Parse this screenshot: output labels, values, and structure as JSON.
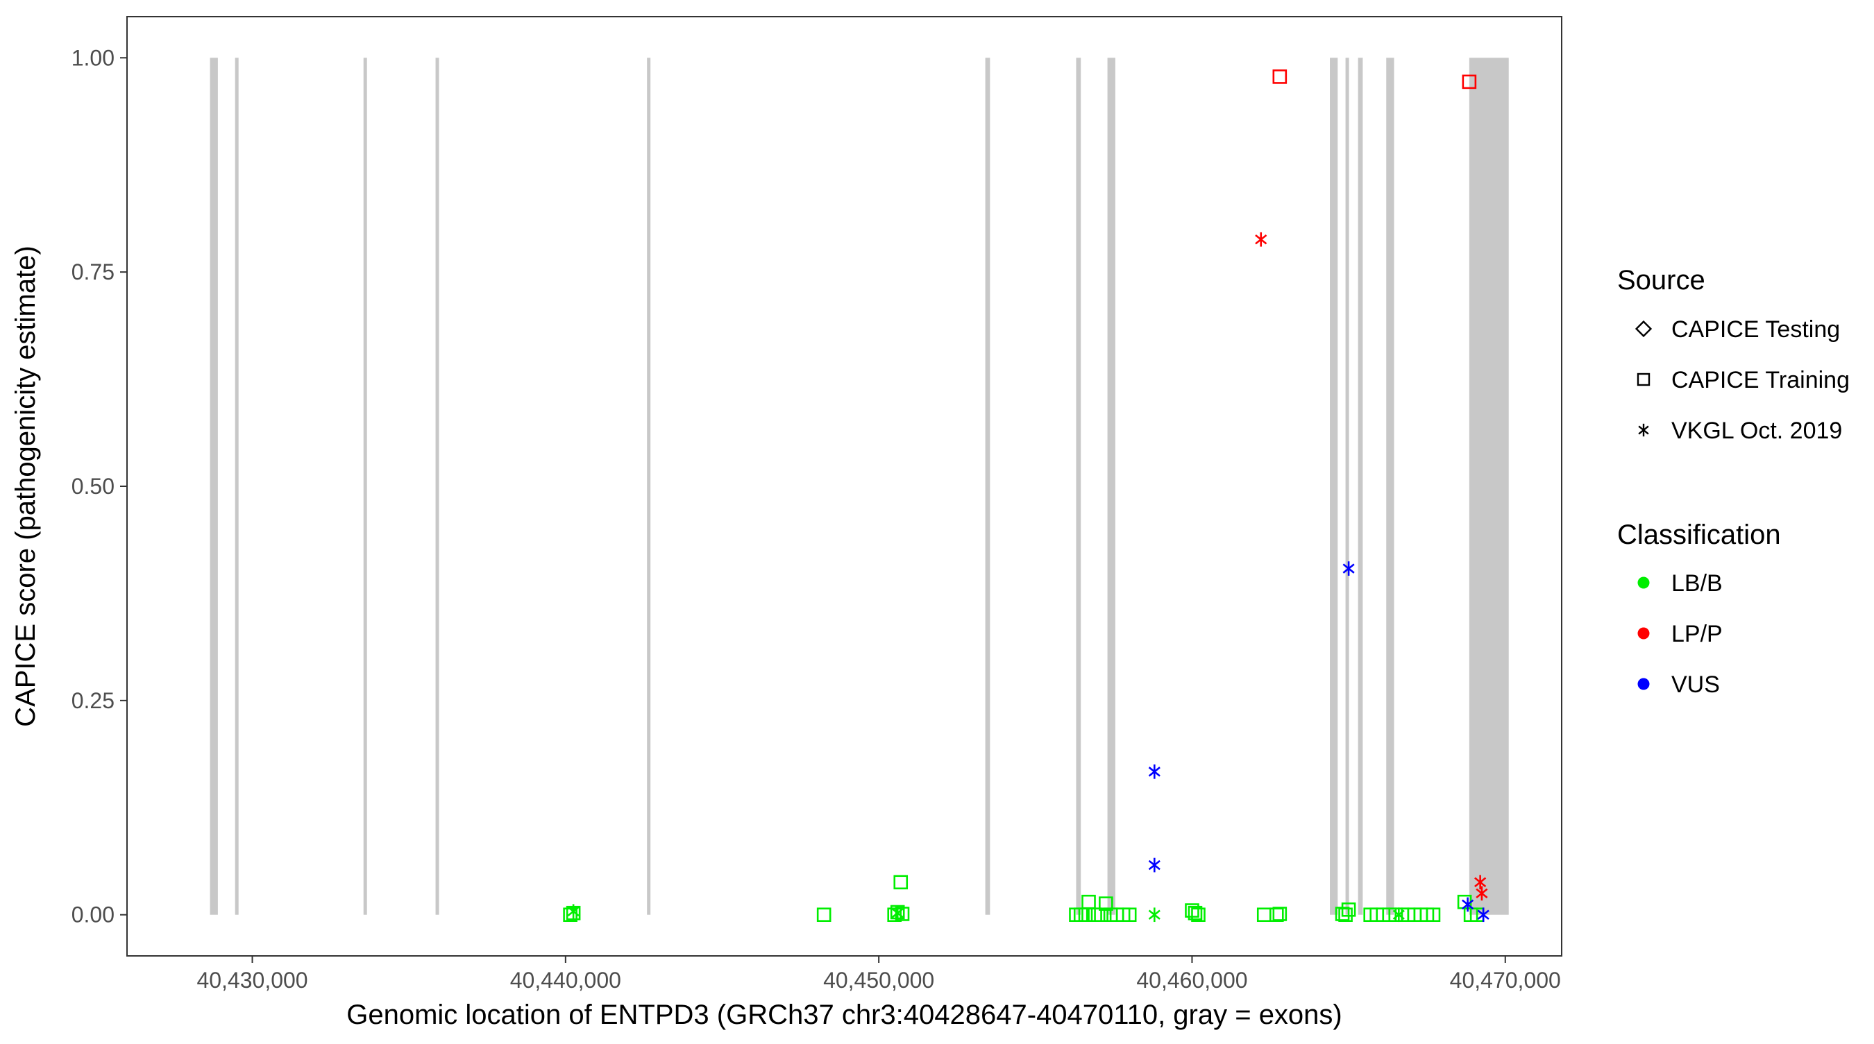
{
  "chart_data": {
    "type": "scatter",
    "xlabel": "Genomic location of ENTPD3 (GRCh37 chr3:40428647-40470110, gray = exons)",
    "ylabel": "CAPICE score (pathogenicity estimate)",
    "xlim": [
      40426000,
      40471800
    ],
    "ylim": [
      -0.048,
      1.048
    ],
    "x_ticks": [
      40430000,
      40440000,
      40450000,
      40460000,
      40470000
    ],
    "x_tick_labels": [
      "40,430,000",
      "40,440,000",
      "40,450,000",
      "40,460,000",
      "40,470,000"
    ],
    "y_ticks": [
      0,
      0.25,
      0.5,
      0.75,
      1
    ],
    "y_tick_labels": [
      "0.00",
      "0.25",
      "0.50",
      "0.75",
      "1.00"
    ],
    "grid": false,
    "exon_color": "#c8c8c8",
    "exons": [
      [
        40428650,
        40428900
      ],
      [
        40429450,
        40429550
      ],
      [
        40433550,
        40433650
      ],
      [
        40435850,
        40435950
      ],
      [
        40442600,
        40442700
      ],
      [
        40453400,
        40453550
      ],
      [
        40456300,
        40456450
      ],
      [
        40457300,
        40457550
      ],
      [
        40464400,
        40464650
      ],
      [
        40464900,
        40465000
      ],
      [
        40465300,
        40465450
      ],
      [
        40466200,
        40466450
      ],
      [
        40468850,
        40470110
      ]
    ],
    "legend": {
      "position": "right",
      "source": {
        "title": "Source",
        "items": [
          {
            "label": "CAPICE Testing",
            "shape": "diamond"
          },
          {
            "label": "CAPICE Training",
            "shape": "square"
          },
          {
            "label": "VKGL Oct. 2019",
            "shape": "asterisk"
          }
        ]
      },
      "classification": {
        "title": "Classification",
        "items": [
          {
            "label": "LB/B",
            "color": "#00ee00"
          },
          {
            "label": "LP/P",
            "color": "#ff0000"
          },
          {
            "label": "VUS",
            "color": "#0000ff"
          }
        ]
      }
    },
    "series": [
      {
        "source": "CAPICE Training",
        "classification": "LB/B",
        "shape": "square",
        "color": "#00ee00",
        "points": [
          [
            40440150,
            0
          ],
          [
            40440250,
            0.002
          ],
          [
            40448250,
            0
          ],
          [
            40450500,
            0
          ],
          [
            40450600,
            0.003
          ],
          [
            40450700,
            0.038
          ],
          [
            40450750,
            0.001
          ],
          [
            40456300,
            0
          ],
          [
            40456450,
            0
          ],
          [
            40456600,
            0
          ],
          [
            40456700,
            0.015
          ],
          [
            40456900,
            0
          ],
          [
            40457100,
            0
          ],
          [
            40457250,
            0.013
          ],
          [
            40457400,
            0
          ],
          [
            40457600,
            0
          ],
          [
            40457800,
            0
          ],
          [
            40458000,
            0
          ],
          [
            40460000,
            0.005
          ],
          [
            40460100,
            0.002
          ],
          [
            40460200,
            0
          ],
          [
            40462300,
            0
          ],
          [
            40462700,
            0
          ],
          [
            40462800,
            0.001
          ],
          [
            40464800,
            0.001
          ],
          [
            40464900,
            0
          ],
          [
            40465000,
            0.006
          ],
          [
            40465700,
            0
          ],
          [
            40465900,
            0
          ],
          [
            40466100,
            0
          ],
          [
            40466300,
            0
          ],
          [
            40466500,
            0
          ],
          [
            40466700,
            0
          ],
          [
            40466900,
            0
          ],
          [
            40467100,
            0
          ],
          [
            40467300,
            0
          ],
          [
            40467500,
            0
          ],
          [
            40467700,
            0
          ],
          [
            40468700,
            0.015
          ],
          [
            40468900,
            0
          ],
          [
            40469100,
            0
          ]
        ]
      },
      {
        "source": "CAPICE Training",
        "classification": "LP/P",
        "shape": "square",
        "color": "#ff0000",
        "points": [
          [
            40462800,
            0.978
          ],
          [
            40468850,
            0.972
          ]
        ]
      },
      {
        "source": "VKGL Oct. 2019",
        "classification": "LB/B",
        "shape": "asterisk",
        "color": "#00ee00",
        "points": [
          [
            40440250,
            0.004
          ],
          [
            40450600,
            0.002
          ],
          [
            40458800,
            0
          ],
          [
            40466600,
            0
          ]
        ]
      },
      {
        "source": "VKGL Oct. 2019",
        "classification": "LP/P",
        "shape": "asterisk",
        "color": "#ff0000",
        "points": [
          [
            40462200,
            0.788
          ],
          [
            40469200,
            0.038
          ],
          [
            40469250,
            0.025
          ]
        ]
      },
      {
        "source": "VKGL Oct. 2019",
        "classification": "VUS",
        "shape": "asterisk",
        "color": "#0000ff",
        "points": [
          [
            40458800,
            0.167
          ],
          [
            40458800,
            0.058
          ],
          [
            40465000,
            0.404
          ],
          [
            40468800,
            0.012
          ],
          [
            40469300,
            0
          ]
        ]
      }
    ]
  }
}
